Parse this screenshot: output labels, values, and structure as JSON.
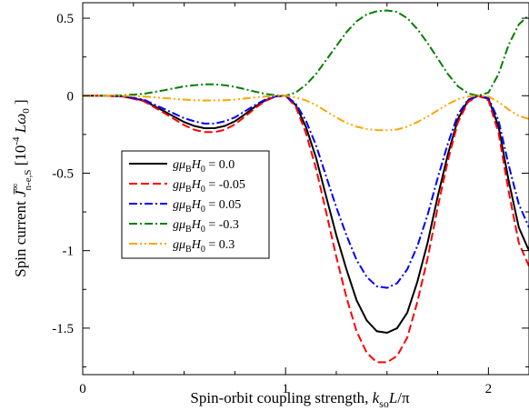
{
  "chart_data": {
    "type": "line",
    "xlabel": "Spin-orbit coupling strength, k_so L/π",
    "ylabel": "Spin current  J̄∞n-e,S   [10^-4 Lω0 ]",
    "xlim": [
      0,
      2.2
    ],
    "ylim": [
      -1.8,
      0.6
    ],
    "x_ticks": [
      0,
      1,
      2
    ],
    "y_ticks": [
      0.5,
      0,
      -0.5,
      -1,
      -1.5
    ],
    "x_tick_labels": [
      "0",
      "1",
      "2"
    ],
    "y_tick_labels": [
      "0.5",
      "0",
      "-0.5",
      "-1",
      "-1.5"
    ],
    "grid": false,
    "legend_position": "lower-left",
    "x": [
      0,
      0.1,
      0.2,
      0.3,
      0.4,
      0.5,
      0.55,
      0.6,
      0.65,
      0.7,
      0.75,
      0.8,
      0.85,
      0.9,
      0.95,
      1.0,
      1.05,
      1.1,
      1.15,
      1.2,
      1.25,
      1.3,
      1.35,
      1.4,
      1.45,
      1.5,
      1.55,
      1.6,
      1.65,
      1.7,
      1.75,
      1.8,
      1.85,
      1.9,
      1.95,
      2.0,
      2.05,
      2.1,
      2.15,
      2.2
    ],
    "series": [
      {
        "name": "gμBH0 = 0.0",
        "label_main": "gμ",
        "label_sub1": "B",
        "label_mid": "H",
        "label_sub2": "0",
        "label_value": " = 0.0",
        "color": "#000000",
        "dash": "",
        "values": [
          0,
          0,
          -0.005,
          -0.03,
          -0.1,
          -0.17,
          -0.195,
          -0.21,
          -0.21,
          -0.195,
          -0.165,
          -0.12,
          -0.07,
          -0.03,
          -0.005,
          0,
          -0.06,
          -0.2,
          -0.4,
          -0.65,
          -0.9,
          -1.12,
          -1.32,
          -1.45,
          -1.52,
          -1.53,
          -1.5,
          -1.4,
          -1.2,
          -0.95,
          -0.65,
          -0.38,
          -0.15,
          -0.03,
          0,
          -0.02,
          -0.2,
          -0.55,
          -0.85,
          -1.0
        ]
      },
      {
        "name": "gμBH0 = -0.05",
        "label_main": "gμ",
        "label_sub1": "B",
        "label_mid": "H",
        "label_sub2": "0",
        "label_value": " = -0.05",
        "color": "#ff0000",
        "dash": "9,4",
        "values": [
          0,
          0,
          -0.005,
          -0.035,
          -0.11,
          -0.19,
          -0.22,
          -0.235,
          -0.235,
          -0.22,
          -0.185,
          -0.135,
          -0.08,
          -0.035,
          -0.005,
          0,
          -0.07,
          -0.24,
          -0.47,
          -0.75,
          -1.04,
          -1.3,
          -1.52,
          -1.66,
          -1.72,
          -1.72,
          -1.68,
          -1.56,
          -1.33,
          -1.05,
          -0.72,
          -0.42,
          -0.17,
          -0.04,
          0,
          -0.03,
          -0.24,
          -0.62,
          -0.95,
          -1.1
        ]
      },
      {
        "name": "gμBH0 = 0.05",
        "label_main": "gμ",
        "label_sub1": "B",
        "label_mid": "H",
        "label_sub2": "0",
        "label_value": " = 0.05",
        "color": "#0000ff",
        "dash": "9,3,2,3",
        "values": [
          0,
          0,
          -0.004,
          -0.025,
          -0.085,
          -0.145,
          -0.165,
          -0.18,
          -0.18,
          -0.165,
          -0.14,
          -0.1,
          -0.06,
          -0.025,
          -0.004,
          0,
          -0.05,
          -0.16,
          -0.32,
          -0.52,
          -0.72,
          -0.9,
          -1.06,
          -1.17,
          -1.23,
          -1.24,
          -1.21,
          -1.12,
          -0.97,
          -0.77,
          -0.53,
          -0.31,
          -0.12,
          -0.025,
          0,
          -0.015,
          -0.16,
          -0.45,
          -0.7,
          -0.85
        ]
      },
      {
        "name": "gμBH0 = -0.3",
        "label_main": "gμ",
        "label_sub1": "B",
        "label_mid": "H",
        "label_sub2": "0",
        "label_value": " = -0.3",
        "color": "#008000",
        "dash": "9,3,2,3",
        "values": [
          0,
          0,
          0.002,
          0.012,
          0.035,
          0.06,
          0.068,
          0.073,
          0.073,
          0.068,
          0.057,
          0.042,
          0.026,
          0.012,
          0.003,
          0,
          0.02,
          0.07,
          0.14,
          0.23,
          0.32,
          0.41,
          0.48,
          0.525,
          0.545,
          0.55,
          0.54,
          0.5,
          0.43,
          0.34,
          0.24,
          0.14,
          0.06,
          0.015,
          0,
          0.02,
          0.14,
          0.33,
          0.46,
          0.52
        ]
      },
      {
        "name": "gμBH0 = 0.3",
        "label_main": "gμ",
        "label_sub1": "B",
        "label_mid": "H",
        "label_sub2": "0",
        "label_value": " = 0.3",
        "color": "#ffa500",
        "dash": "9,3,2,3,2,3",
        "values": [
          0,
          0,
          -0.001,
          -0.005,
          -0.015,
          -0.025,
          -0.029,
          -0.031,
          -0.031,
          -0.029,
          -0.025,
          -0.018,
          -0.011,
          -0.005,
          -0.001,
          0,
          -0.01,
          -0.03,
          -0.06,
          -0.1,
          -0.14,
          -0.175,
          -0.2,
          -0.215,
          -0.222,
          -0.223,
          -0.218,
          -0.2,
          -0.17,
          -0.135,
          -0.095,
          -0.055,
          -0.022,
          -0.005,
          0,
          -0.005,
          -0.04,
          -0.09,
          -0.13,
          -0.15
        ]
      }
    ]
  }
}
